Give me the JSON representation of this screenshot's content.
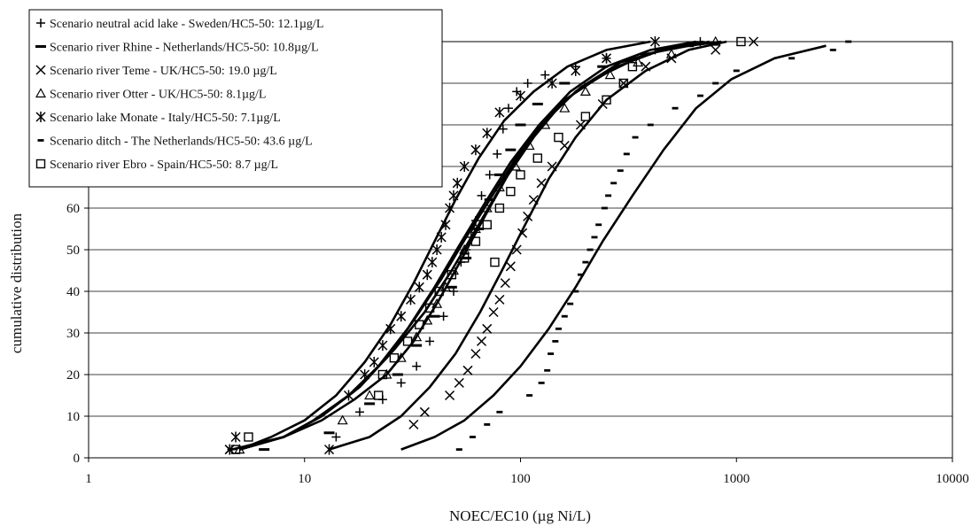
{
  "chart_data": {
    "type": "scatter",
    "xlabel": "NOEC/EC10 (µg Ni/L)",
    "ylabel": "cumulative distribution",
    "x_scale": "log",
    "xlim": [
      1,
      10000
    ],
    "ylim": [
      0,
      100
    ],
    "x_ticks": [
      "1",
      "10",
      "100",
      "1000",
      "10000"
    ],
    "y_ticks": [
      "0",
      "10",
      "20",
      "30",
      "40",
      "50",
      "60"
    ],
    "grid": "horizontal",
    "legend_position": "top-left",
    "series": [
      {
        "name": "Scenario neutral acid lake - Sweden/HC5-50: 12.1µg/L",
        "marker": "plus",
        "hc5_50": 12.1,
        "points": [
          [
            4.6,
            2
          ],
          [
            14,
            5
          ],
          [
            18,
            11
          ],
          [
            23,
            14
          ],
          [
            28,
            18
          ],
          [
            33,
            22
          ],
          [
            38,
            28
          ],
          [
            44,
            34
          ],
          [
            49,
            40
          ],
          [
            53,
            47
          ],
          [
            56,
            50
          ],
          [
            59,
            53
          ],
          [
            62,
            57
          ],
          [
            66,
            63
          ],
          [
            72,
            68
          ],
          [
            78,
            73
          ],
          [
            83,
            79
          ],
          [
            88,
            84
          ],
          [
            96,
            88
          ],
          [
            108,
            90
          ],
          [
            130,
            92
          ],
          [
            180,
            94
          ],
          [
            250,
            96
          ],
          [
            420,
            98
          ],
          [
            680,
            100
          ]
        ],
        "curve": [
          [
            4.6,
            2
          ],
          [
            8,
            5
          ],
          [
            12,
            9
          ],
          [
            17,
            14
          ],
          [
            24,
            20
          ],
          [
            32,
            28
          ],
          [
            42,
            38
          ],
          [
            55,
            49
          ],
          [
            70,
            59
          ],
          [
            92,
            70
          ],
          [
            125,
            80
          ],
          [
            180,
            88
          ],
          [
            280,
            94
          ],
          [
            450,
            98
          ],
          [
            700,
            100
          ]
        ]
      },
      {
        "name": "Scenario river Rhine - Netherlands/HC5-50: 10.8µg/L",
        "marker": "dash",
        "hc5_50": 10.8,
        "points": [
          [
            6.5,
            2
          ],
          [
            13,
            6
          ],
          [
            20,
            13
          ],
          [
            27,
            20
          ],
          [
            33,
            27
          ],
          [
            40,
            34
          ],
          [
            48,
            41
          ],
          [
            56,
            48
          ],
          [
            64,
            55
          ],
          [
            72,
            62
          ],
          [
            80,
            68
          ],
          [
            90,
            74
          ],
          [
            100,
            80
          ],
          [
            120,
            85
          ],
          [
            160,
            90
          ],
          [
            240,
            94
          ],
          [
            380,
            97
          ],
          [
            600,
            99
          ]
        ],
        "curve": [
          [
            5,
            2
          ],
          [
            8,
            5
          ],
          [
            12,
            10
          ],
          [
            18,
            17
          ],
          [
            26,
            26
          ],
          [
            36,
            35
          ],
          [
            48,
            45
          ],
          [
            64,
            56
          ],
          [
            85,
            67
          ],
          [
            115,
            77
          ],
          [
            160,
            86
          ],
          [
            240,
            92
          ],
          [
            380,
            97
          ],
          [
            600,
            99
          ],
          [
            850,
            100
          ]
        ]
      },
      {
        "name": "Scenario river Teme - UK/HC5-50: 19.0 µg/L",
        "marker": "x",
        "hc5_50": 19.0,
        "points": [
          [
            4.5,
            2
          ],
          [
            32,
            8
          ],
          [
            36,
            11
          ],
          [
            47,
            15
          ],
          [
            52,
            18
          ],
          [
            57,
            21
          ],
          [
            62,
            25
          ],
          [
            66,
            28
          ],
          [
            70,
            31
          ],
          [
            75,
            35
          ],
          [
            80,
            38
          ],
          [
            85,
            42
          ],
          [
            90,
            46
          ],
          [
            96,
            50
          ],
          [
            102,
            54
          ],
          [
            108,
            58
          ],
          [
            115,
            62
          ],
          [
            125,
            66
          ],
          [
            140,
            70
          ],
          [
            160,
            75
          ],
          [
            190,
            80
          ],
          [
            240,
            85
          ],
          [
            300,
            90
          ],
          [
            380,
            94
          ],
          [
            500,
            96
          ],
          [
            800,
            98
          ],
          [
            1200,
            100
          ]
        ],
        "curve": [
          [
            13,
            2
          ],
          [
            20,
            5
          ],
          [
            28,
            10
          ],
          [
            38,
            17
          ],
          [
            50,
            25
          ],
          [
            65,
            35
          ],
          [
            82,
            45
          ],
          [
            105,
            56
          ],
          [
            135,
            67
          ],
          [
            180,
            77
          ],
          [
            250,
            86
          ],
          [
            380,
            93
          ],
          [
            600,
            98
          ],
          [
            900,
            100
          ]
        ]
      },
      {
        "name": "Scenario river Otter - UK/HC5-50: 8.1µg/L",
        "marker": "triangle",
        "hc5_50": 8.1,
        "points": [
          [
            5,
            2
          ],
          [
            15,
            9
          ],
          [
            20,
            15
          ],
          [
            24,
            20
          ],
          [
            28,
            24
          ],
          [
            33,
            29
          ],
          [
            37,
            33
          ],
          [
            41,
            37
          ],
          [
            45,
            41
          ],
          [
            49,
            45
          ],
          [
            55,
            50
          ],
          [
            62,
            55
          ],
          [
            70,
            60
          ],
          [
            80,
            65
          ],
          [
            95,
            70
          ],
          [
            110,
            75
          ],
          [
            130,
            80
          ],
          [
            160,
            84
          ],
          [
            200,
            88
          ],
          [
            260,
            92
          ],
          [
            350,
            95
          ],
          [
            500,
            97
          ],
          [
            800,
            100
          ]
        ],
        "curve": [
          [
            5,
            2
          ],
          [
            8,
            5
          ],
          [
            11,
            9
          ],
          [
            16,
            15
          ],
          [
            22,
            22
          ],
          [
            30,
            31
          ],
          [
            40,
            41
          ],
          [
            52,
            51
          ],
          [
            68,
            61
          ],
          [
            90,
            71
          ],
          [
            122,
            80
          ],
          [
            170,
            88
          ],
          [
            250,
            94
          ],
          [
            400,
            98
          ],
          [
            650,
            100
          ]
        ]
      },
      {
        "name": "Scenario lake Monate - Italy/HC5-50: 7.1µg/L",
        "marker": "asterisk",
        "hc5_50": 7.1,
        "points": [
          [
            4.5,
            2
          ],
          [
            4.8,
            5
          ],
          [
            13,
            2
          ],
          [
            16,
            15
          ],
          [
            19,
            20
          ],
          [
            21,
            23
          ],
          [
            23,
            27
          ],
          [
            25,
            31
          ],
          [
            28,
            34
          ],
          [
            31,
            38
          ],
          [
            34,
            41
          ],
          [
            37,
            44
          ],
          [
            39,
            47
          ],
          [
            41,
            50
          ],
          [
            43,
            53
          ],
          [
            45,
            56
          ],
          [
            47,
            60
          ],
          [
            49,
            63
          ],
          [
            51,
            66
          ],
          [
            55,
            70
          ],
          [
            62,
            74
          ],
          [
            70,
            78
          ],
          [
            80,
            83
          ],
          [
            100,
            87
          ],
          [
            140,
            90
          ],
          [
            180,
            93
          ],
          [
            250,
            96
          ],
          [
            420,
            100
          ]
        ],
        "curve": [
          [
            5,
            2
          ],
          [
            7,
            5
          ],
          [
            10,
            9
          ],
          [
            14,
            15
          ],
          [
            19,
            23
          ],
          [
            25,
            32
          ],
          [
            32,
            42
          ],
          [
            40,
            52
          ],
          [
            50,
            62
          ],
          [
            64,
            72
          ],
          [
            84,
            81
          ],
          [
            115,
            88
          ],
          [
            165,
            94
          ],
          [
            250,
            98
          ],
          [
            400,
            100
          ]
        ]
      },
      {
        "name": "Scenario ditch - The Netherlands/HC5-50: 43.6 µg/L",
        "marker": "dash-short",
        "hc5_50": 43.6,
        "points": [
          [
            52,
            2
          ],
          [
            60,
            5
          ],
          [
            70,
            8
          ],
          [
            80,
            11
          ],
          [
            110,
            15
          ],
          [
            125,
            18
          ],
          [
            133,
            21
          ],
          [
            138,
            25
          ],
          [
            145,
            28
          ],
          [
            150,
            31
          ],
          [
            160,
            34
          ],
          [
            170,
            37
          ],
          [
            180,
            40
          ],
          [
            190,
            44
          ],
          [
            200,
            47
          ],
          [
            210,
            50
          ],
          [
            220,
            53
          ],
          [
            230,
            56
          ],
          [
            245,
            60
          ],
          [
            255,
            63
          ],
          [
            270,
            66
          ],
          [
            290,
            69
          ],
          [
            310,
            73
          ],
          [
            340,
            77
          ],
          [
            400,
            80
          ],
          [
            520,
            84
          ],
          [
            680,
            87
          ],
          [
            800,
            90
          ],
          [
            1000,
            93
          ],
          [
            1800,
            96
          ],
          [
            2800,
            98
          ],
          [
            3300,
            100
          ]
        ],
        "curve": [
          [
            28,
            2
          ],
          [
            40,
            5
          ],
          [
            55,
            9
          ],
          [
            75,
            15
          ],
          [
            100,
            22
          ],
          [
            135,
            31
          ],
          [
            180,
            41
          ],
          [
            240,
            52
          ],
          [
            330,
            63
          ],
          [
            460,
            74
          ],
          [
            650,
            84
          ],
          [
            950,
            91
          ],
          [
            1500,
            96
          ],
          [
            2600,
            99
          ]
        ]
      },
      {
        "name": "Scenario river Ebro - Spain/HC5-50: 8.7 µg/L",
        "marker": "square",
        "hc5_50": 8.7,
        "points": [
          [
            4.8,
            2
          ],
          [
            5.5,
            5
          ],
          [
            22,
            15
          ],
          [
            23,
            20
          ],
          [
            26,
            24
          ],
          [
            30,
            28
          ],
          [
            34,
            32
          ],
          [
            38,
            36
          ],
          [
            42,
            40
          ],
          [
            48,
            44
          ],
          [
            55,
            48
          ],
          [
            62,
            52
          ],
          [
            70,
            56
          ],
          [
            76,
            47
          ],
          [
            80,
            60
          ],
          [
            90,
            64
          ],
          [
            100,
            68
          ],
          [
            120,
            72
          ],
          [
            150,
            77
          ],
          [
            200,
            82
          ],
          [
            250,
            86
          ],
          [
            300,
            90
          ],
          [
            330,
            94
          ],
          [
            1050,
            100
          ]
        ],
        "curve": [
          [
            5,
            2
          ],
          [
            8,
            5
          ],
          [
            12,
            10
          ],
          [
            17,
            16
          ],
          [
            24,
            24
          ],
          [
            32,
            33
          ],
          [
            43,
            43
          ],
          [
            56,
            53
          ],
          [
            74,
            63
          ],
          [
            98,
            73
          ],
          [
            135,
            82
          ],
          [
            190,
            89
          ],
          [
            290,
            95
          ],
          [
            460,
            98
          ],
          [
            750,
            100
          ]
        ]
      }
    ]
  }
}
